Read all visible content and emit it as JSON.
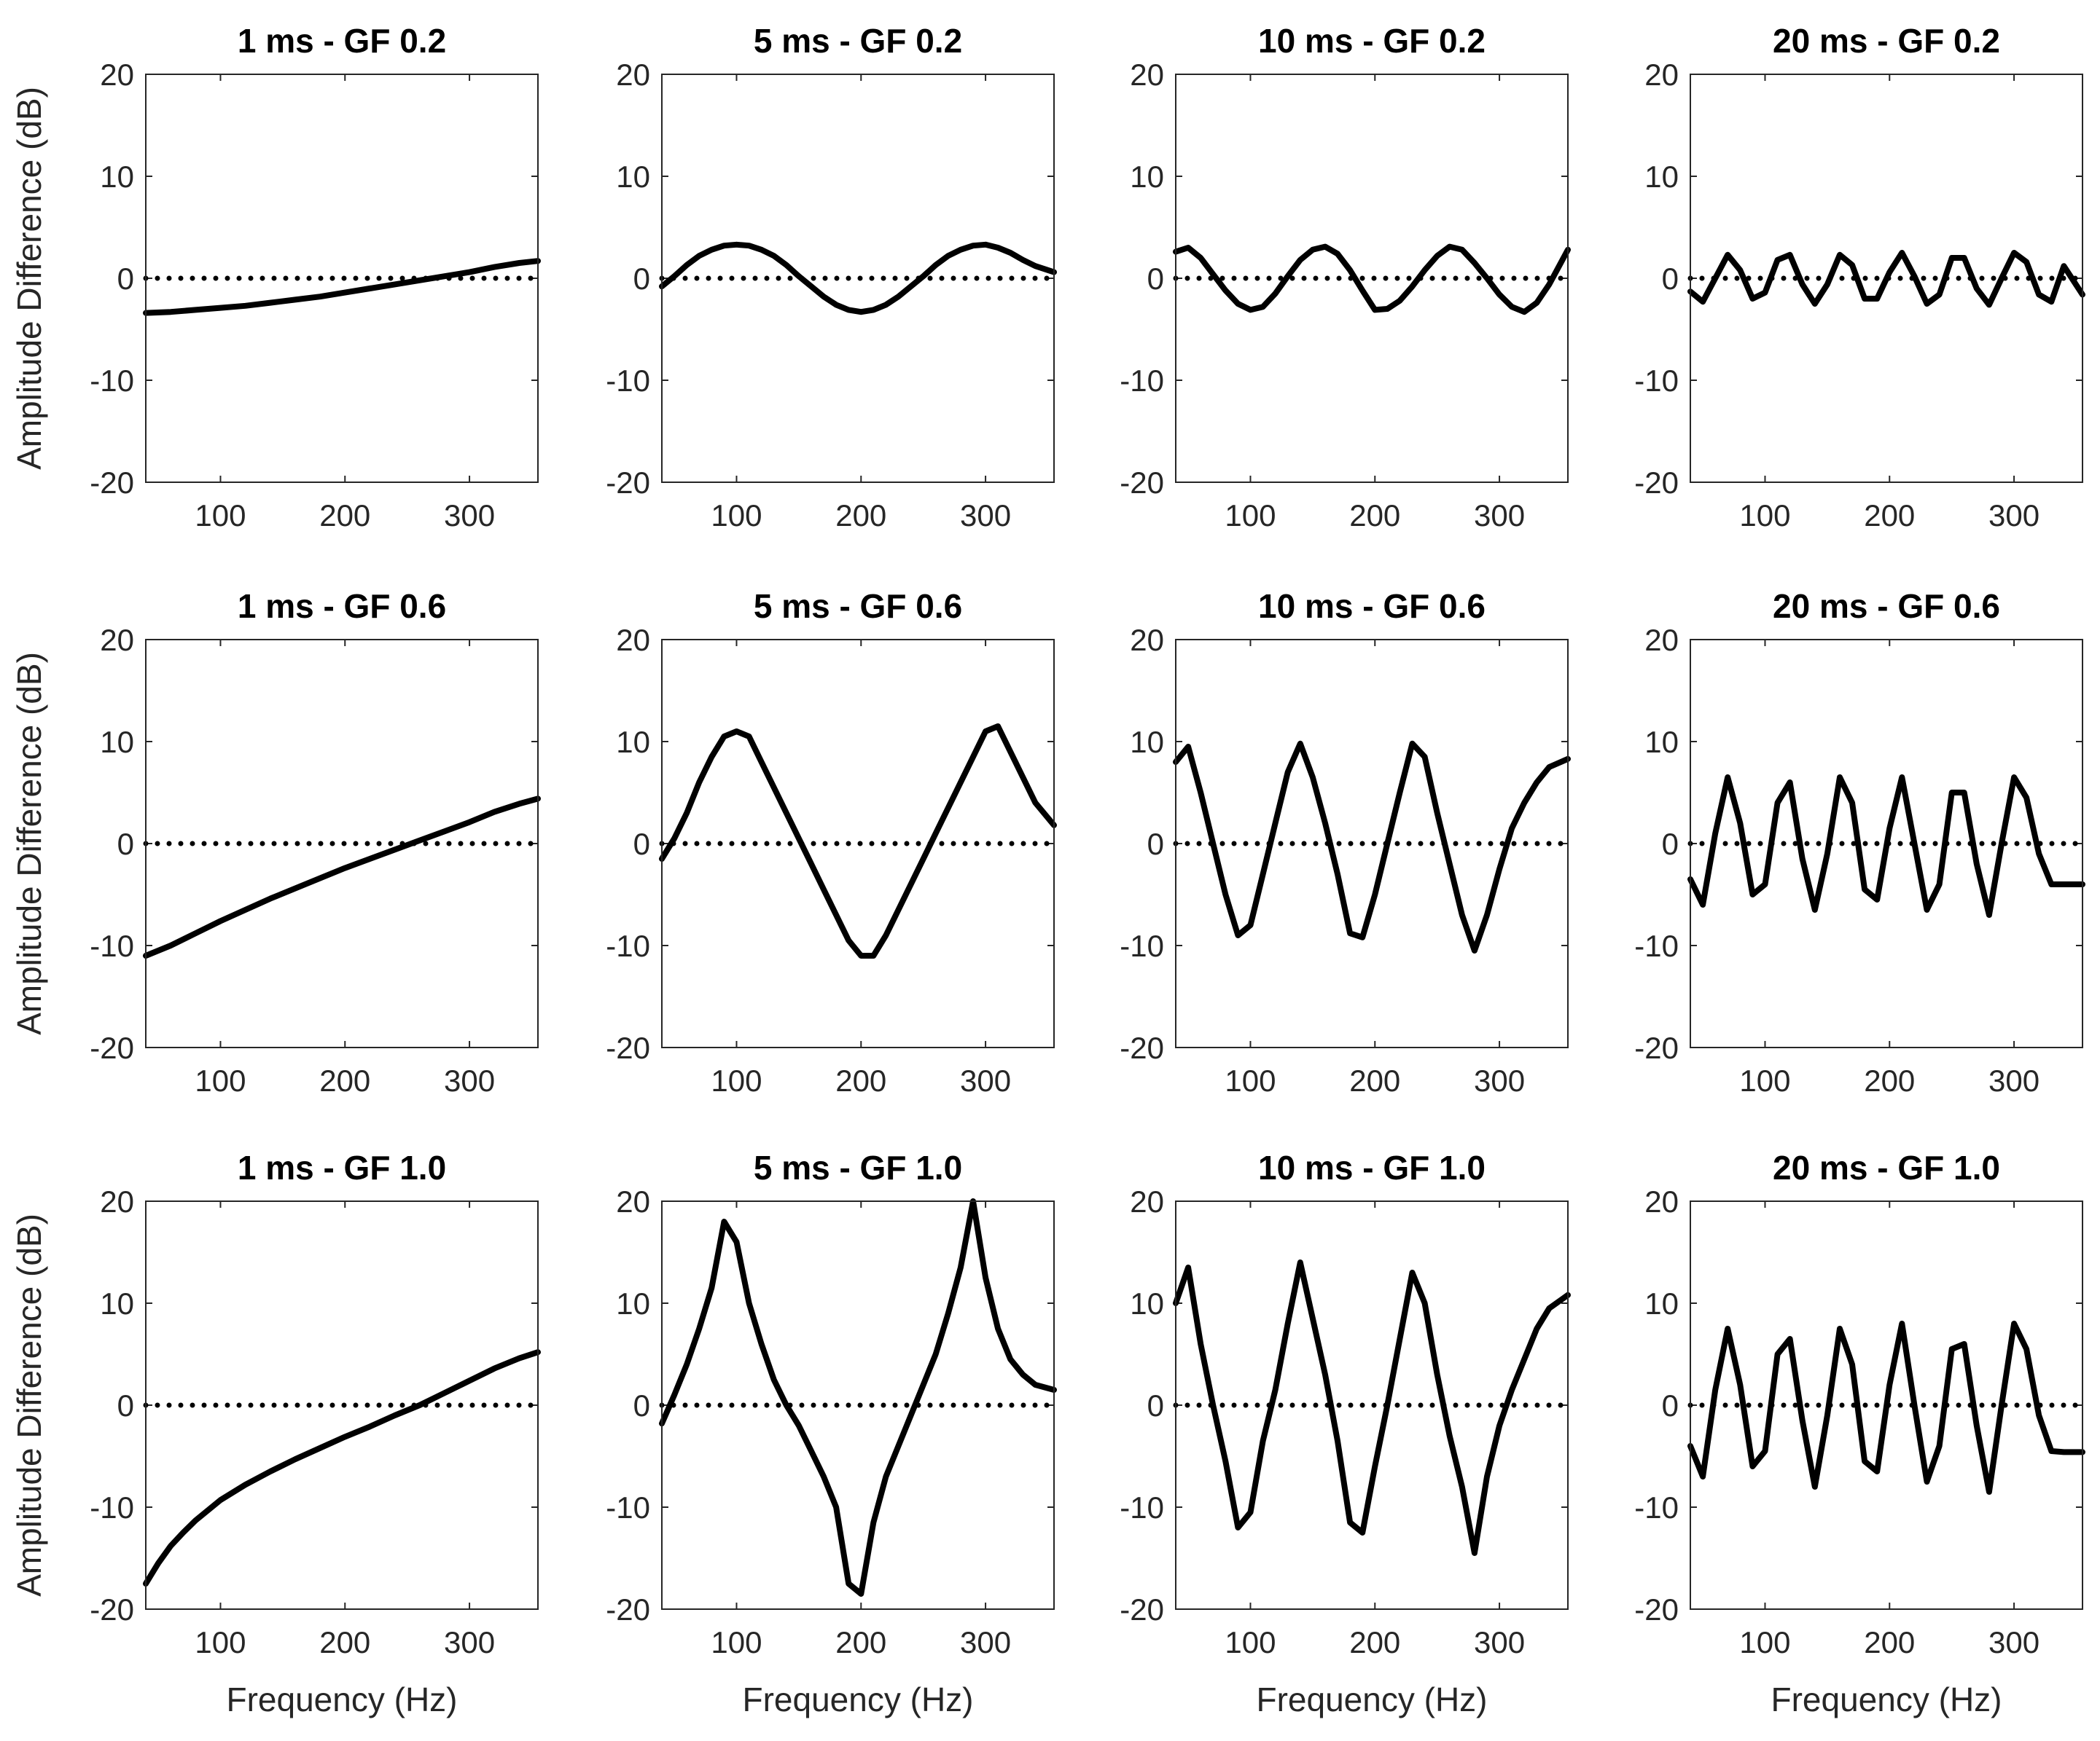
{
  "chart_data": [
    {
      "type": "line",
      "title": "1 ms - GF 0.2",
      "xlabel": "",
      "ylabel": "Amplitude Difference (dB)",
      "xlim": [
        40,
        355
      ],
      "ylim": [
        -20,
        20
      ],
      "xticks": [
        100,
        200,
        300
      ],
      "yticks": [
        -20,
        -10,
        0,
        10,
        20
      ],
      "reference_line": {
        "y": 0,
        "style": "dotted"
      },
      "x": [
        40,
        60,
        80,
        100,
        120,
        140,
        160,
        180,
        200,
        220,
        240,
        260,
        280,
        300,
        320,
        340,
        355
      ],
      "y": [
        -3.4,
        -3.3,
        -3.1,
        -2.9,
        -2.7,
        -2.4,
        -2.1,
        -1.8,
        -1.4,
        -1.0,
        -0.6,
        -0.2,
        0.2,
        0.6,
        1.1,
        1.5,
        1.7
      ]
    },
    {
      "type": "line",
      "title": "5 ms - GF 0.2",
      "xlabel": "",
      "ylabel": "",
      "xlim": [
        40,
        355
      ],
      "ylim": [
        -20,
        20
      ],
      "xticks": [
        100,
        200,
        300
      ],
      "yticks": [
        -20,
        -10,
        0,
        10,
        20
      ],
      "reference_line": {
        "y": 0,
        "style": "dotted"
      },
      "x": [
        40,
        50,
        60,
        70,
        80,
        90,
        100,
        110,
        120,
        130,
        140,
        150,
        160,
        170,
        180,
        190,
        200,
        210,
        220,
        230,
        240,
        250,
        260,
        270,
        280,
        290,
        300,
        310,
        320,
        330,
        340,
        355
      ],
      "y": [
        -0.8,
        0.2,
        1.3,
        2.2,
        2.8,
        3.2,
        3.3,
        3.2,
        2.8,
        2.2,
        1.3,
        0.2,
        -0.8,
        -1.8,
        -2.6,
        -3.1,
        -3.3,
        -3.1,
        -2.6,
        -1.8,
        -0.8,
        0.2,
        1.3,
        2.2,
        2.8,
        3.2,
        3.3,
        3.0,
        2.5,
        1.8,
        1.2,
        0.6
      ]
    },
    {
      "type": "line",
      "title": "10 ms - GF 0.2",
      "xlabel": "",
      "ylabel": "",
      "xlim": [
        40,
        355
      ],
      "ylim": [
        -20,
        20
      ],
      "xticks": [
        100,
        200,
        300
      ],
      "yticks": [
        -20,
        -10,
        0,
        10,
        20
      ],
      "reference_line": {
        "y": 0,
        "style": "dotted"
      },
      "x": [
        40,
        50,
        60,
        70,
        80,
        90,
        100,
        110,
        120,
        130,
        140,
        150,
        160,
        170,
        180,
        190,
        200,
        210,
        220,
        230,
        240,
        250,
        260,
        270,
        280,
        290,
        300,
        310,
        320,
        330,
        340,
        355
      ],
      "y": [
        2.6,
        3.0,
        2.0,
        0.4,
        -1.2,
        -2.5,
        -3.1,
        -2.8,
        -1.5,
        0.2,
        1.8,
        2.8,
        3.1,
        2.4,
        0.8,
        -1.2,
        -3.1,
        -3.0,
        -2.2,
        -0.8,
        0.8,
        2.2,
        3.1,
        2.8,
        1.5,
        0,
        -1.6,
        -2.8,
        -3.3,
        -2.4,
        -0.6,
        2.8
      ]
    },
    {
      "type": "line",
      "title": "20 ms - GF 0.2",
      "xlabel": "",
      "ylabel": "",
      "xlim": [
        40,
        355
      ],
      "ylim": [
        -20,
        20
      ],
      "xticks": [
        100,
        200,
        300
      ],
      "yticks": [
        -20,
        -10,
        0,
        10,
        20
      ],
      "reference_line": {
        "y": 0,
        "style": "dotted"
      },
      "x": [
        40,
        50,
        60,
        70,
        80,
        90,
        100,
        110,
        120,
        130,
        140,
        150,
        160,
        170,
        180,
        190,
        200,
        210,
        220,
        230,
        240,
        250,
        260,
        270,
        280,
        290,
        300,
        310,
        320,
        330,
        340,
        355
      ],
      "y": [
        -1.3,
        -2.3,
        0,
        2.3,
        0.8,
        -2.0,
        -1.4,
        1.8,
        2.3,
        -0.6,
        -2.5,
        -0.6,
        2.3,
        1.3,
        -2.0,
        -2.0,
        0.6,
        2.5,
        0.2,
        -2.5,
        -1.6,
        2.0,
        2.0,
        -1.0,
        -2.6,
        0,
        2.5,
        1.6,
        -1.6,
        -2.3,
        1.2,
        -1.6
      ]
    },
    {
      "type": "line",
      "title": "1 ms - GF 0.6",
      "xlabel": "",
      "ylabel": "Amplitude Difference (dB)",
      "xlim": [
        40,
        355
      ],
      "ylim": [
        -20,
        20
      ],
      "xticks": [
        100,
        200,
        300
      ],
      "yticks": [
        -20,
        -10,
        0,
        10,
        20
      ],
      "reference_line": {
        "y": 0,
        "style": "dotted"
      },
      "x": [
        40,
        60,
        80,
        100,
        120,
        140,
        160,
        180,
        200,
        220,
        240,
        260,
        280,
        300,
        320,
        340,
        355
      ],
      "y": [
        -11.0,
        -10.0,
        -8.8,
        -7.6,
        -6.5,
        -5.4,
        -4.4,
        -3.4,
        -2.4,
        -1.5,
        -0.6,
        0.3,
        1.2,
        2.1,
        3.1,
        3.9,
        4.4
      ]
    },
    {
      "type": "line",
      "title": "5 ms - GF 0.6",
      "xlabel": "",
      "ylabel": "",
      "xlim": [
        40,
        355
      ],
      "ylim": [
        -20,
        20
      ],
      "xticks": [
        100,
        200,
        300
      ],
      "yticks": [
        -20,
        -10,
        0,
        10,
        20
      ],
      "reference_line": {
        "y": 0,
        "style": "dotted"
      },
      "x": [
        40,
        50,
        60,
        70,
        80,
        90,
        100,
        110,
        120,
        130,
        140,
        150,
        160,
        170,
        180,
        190,
        200,
        210,
        220,
        230,
        240,
        250,
        260,
        270,
        280,
        290,
        300,
        310,
        320,
        330,
        340,
        355
      ],
      "y": [
        -1.5,
        0.5,
        3,
        6,
        8.5,
        10.5,
        11,
        10.5,
        8,
        5.5,
        3,
        0.5,
        -2,
        -4.5,
        -7,
        -9.5,
        -11,
        -11,
        -9,
        -6.5,
        -4,
        -1.5,
        1,
        3.5,
        6,
        8.5,
        11,
        11.5,
        9,
        6.5,
        4,
        1.8
      ]
    },
    {
      "type": "line",
      "title": "10 ms - GF 0.6",
      "xlabel": "",
      "ylabel": "",
      "xlim": [
        40,
        355
      ],
      "ylim": [
        -20,
        20
      ],
      "xticks": [
        100,
        200,
        300
      ],
      "yticks": [
        -20,
        -10,
        0,
        10,
        20
      ],
      "reference_line": {
        "y": 0,
        "style": "dotted"
      },
      "x": [
        40,
        50,
        60,
        70,
        80,
        90,
        100,
        110,
        120,
        130,
        140,
        150,
        160,
        170,
        180,
        190,
        200,
        210,
        220,
        230,
        240,
        250,
        260,
        270,
        280,
        290,
        300,
        310,
        320,
        330,
        340,
        355
      ],
      "y": [
        8,
        9.5,
        5,
        0,
        -5,
        -9,
        -8,
        -3,
        2,
        7,
        9.8,
        6.5,
        2,
        -3,
        -8.8,
        -9.2,
        -5,
        0,
        5,
        9.8,
        8.5,
        3,
        -2,
        -7,
        -10.5,
        -7,
        -2.5,
        1.5,
        4,
        6,
        7.5,
        8.3
      ]
    },
    {
      "type": "line",
      "title": "20 ms - GF 0.6",
      "xlabel": "",
      "ylabel": "",
      "xlim": [
        40,
        355
      ],
      "ylim": [
        -20,
        20
      ],
      "xticks": [
        100,
        200,
        300
      ],
      "yticks": [
        -20,
        -10,
        0,
        10,
        20
      ],
      "reference_line": {
        "y": 0,
        "style": "dotted"
      },
      "x": [
        40,
        50,
        60,
        70,
        80,
        90,
        100,
        110,
        120,
        130,
        140,
        150,
        160,
        170,
        180,
        190,
        200,
        210,
        220,
        230,
        240,
        250,
        260,
        270,
        280,
        290,
        300,
        310,
        320,
        330,
        340,
        355
      ],
      "y": [
        -3.5,
        -6,
        1,
        6.5,
        2,
        -5,
        -4,
        4,
        6,
        -1.5,
        -6.5,
        -1,
        6.5,
        4,
        -4.5,
        -5.5,
        1.5,
        6.5,
        0,
        -6.5,
        -4,
        5,
        5,
        -2,
        -7,
        0,
        6.5,
        4.5,
        -1,
        -4,
        -4,
        -4
      ]
    },
    {
      "type": "line",
      "title": "1 ms - GF 1.0",
      "xlabel": "Frequency (Hz)",
      "ylabel": "Amplitude Difference (dB)",
      "xlim": [
        40,
        355
      ],
      "ylim": [
        -20,
        20
      ],
      "xticks": [
        100,
        200,
        300
      ],
      "yticks": [
        -20,
        -10,
        0,
        10,
        20
      ],
      "reference_line": {
        "y": 0,
        "style": "dotted"
      },
      "x": [
        40,
        50,
        60,
        70,
        80,
        90,
        100,
        120,
        140,
        160,
        180,
        200,
        220,
        240,
        260,
        280,
        300,
        320,
        340,
        355
      ],
      "y": [
        -17.5,
        -15.5,
        -13.8,
        -12.5,
        -11.3,
        -10.3,
        -9.3,
        -7.8,
        -6.5,
        -5.3,
        -4.2,
        -3.1,
        -2.1,
        -1.0,
        0,
        1.2,
        2.4,
        3.6,
        4.6,
        5.2
      ]
    },
    {
      "type": "line",
      "title": "5 ms - GF 1.0",
      "xlabel": "Frequency (Hz)",
      "ylabel": "",
      "xlim": [
        40,
        355
      ],
      "ylim": [
        -20,
        20
      ],
      "xticks": [
        100,
        200,
        300
      ],
      "yticks": [
        -20,
        -10,
        0,
        10,
        20
      ],
      "reference_line": {
        "y": 0,
        "style": "dotted"
      },
      "x": [
        40,
        50,
        60,
        70,
        80,
        90,
        100,
        110,
        120,
        130,
        140,
        150,
        160,
        170,
        180,
        190,
        200,
        210,
        220,
        230,
        240,
        250,
        260,
        270,
        280,
        290,
        300,
        310,
        320,
        330,
        340,
        355
      ],
      "y": [
        -1.8,
        1,
        4,
        7.5,
        11.5,
        18,
        16,
        10,
        6,
        2.5,
        0,
        -2,
        -4.5,
        -7,
        -10,
        -17.5,
        -18.5,
        -11.5,
        -7,
        -4,
        -1,
        2,
        5,
        9,
        13.5,
        20,
        12.5,
        7.5,
        4.5,
        3,
        2,
        1.5
      ]
    },
    {
      "type": "line",
      "title": "10 ms - GF 1.0",
      "xlabel": "Frequency (Hz)",
      "ylabel": "",
      "xlim": [
        40,
        355
      ],
      "ylim": [
        -20,
        20
      ],
      "xticks": [
        100,
        200,
        300
      ],
      "yticks": [
        -20,
        -10,
        0,
        10,
        20
      ],
      "reference_line": {
        "y": 0,
        "style": "dotted"
      },
      "x": [
        40,
        50,
        60,
        70,
        80,
        90,
        100,
        110,
        120,
        130,
        140,
        150,
        160,
        170,
        180,
        190,
        200,
        210,
        220,
        230,
        240,
        250,
        260,
        270,
        280,
        290,
        300,
        310,
        320,
        330,
        340,
        355
      ],
      "y": [
        10,
        13.5,
        6,
        0,
        -5.5,
        -12,
        -10.5,
        -3.5,
        1.5,
        8,
        14,
        8.5,
        3,
        -3.5,
        -11.5,
        -12.5,
        -6,
        0,
        6.5,
        13,
        10,
        3,
        -3,
        -8,
        -14.5,
        -7,
        -2,
        1.5,
        4.5,
        7.5,
        9.5,
        10.8
      ]
    },
    {
      "type": "line",
      "title": "20 ms - GF 1.0",
      "xlabel": "Frequency (Hz)",
      "ylabel": "",
      "xlim": [
        40,
        355
      ],
      "ylim": [
        -20,
        20
      ],
      "xticks": [
        100,
        200,
        300
      ],
      "yticks": [
        -20,
        -10,
        0,
        10,
        20
      ],
      "reference_line": {
        "y": 0,
        "style": "dotted"
      },
      "x": [
        40,
        50,
        60,
        70,
        80,
        90,
        100,
        110,
        120,
        130,
        140,
        150,
        160,
        170,
        180,
        190,
        200,
        210,
        220,
        230,
        240,
        250,
        260,
        270,
        280,
        290,
        300,
        310,
        320,
        330,
        340,
        355
      ],
      "y": [
        -4,
        -7,
        1.5,
        7.5,
        2,
        -6,
        -4.5,
        5,
        6.5,
        -1.5,
        -8,
        -1,
        7.5,
        4,
        -5.5,
        -6.5,
        2,
        8,
        0,
        -7.5,
        -4,
        5.5,
        6,
        -2,
        -8.5,
        0,
        8,
        5.5,
        -1,
        -4.5,
        -4.6,
        -4.6
      ]
    }
  ]
}
